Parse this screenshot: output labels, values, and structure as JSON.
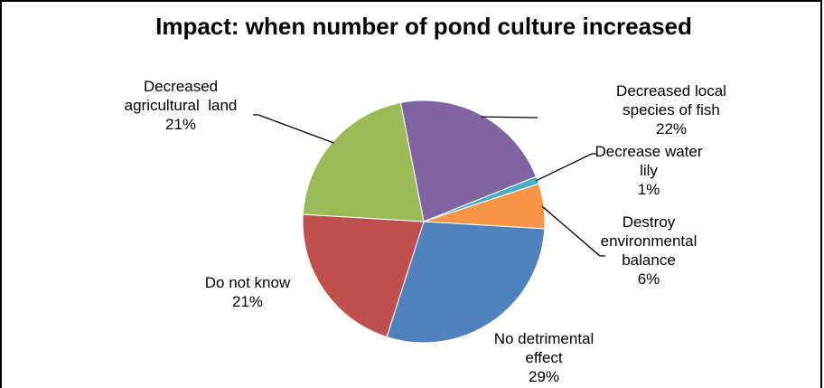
{
  "chart_data": {
    "type": "pie",
    "title": "Impact: when number of pond culture increased",
    "slices": [
      {
        "name": "Decreased local species of fish",
        "label_lines": [
          "Decreased local",
          "species of fish"
        ],
        "pct_label": "22%",
        "value": 22,
        "color": "#8064a2"
      },
      {
        "name": "Decrease water lily",
        "label_lines": [
          "Decrease water",
          "lily"
        ],
        "pct_label": "1%",
        "value": 1,
        "color": "#4bacc6"
      },
      {
        "name": "Destroy environmental balance",
        "label_lines": [
          "Destroy",
          "environmental",
          "balance"
        ],
        "pct_label": "6%",
        "value": 6,
        "color": "#f79646"
      },
      {
        "name": "No detrimental effect",
        "label_lines": [
          "No detrimental",
          "effect"
        ],
        "pct_label": "29%",
        "value": 29,
        "color": "#4f81bd"
      },
      {
        "name": "Do not know",
        "label_lines": [
          "Do not know"
        ],
        "pct_label": "21%",
        "value": 21,
        "color": "#c0504d"
      },
      {
        "name": "Decreased agricultural land",
        "label_lines": [
          "Decreased",
          "agricultural  land"
        ],
        "pct_label": "21%",
        "value": 21,
        "color": "#9bbb59"
      }
    ],
    "legend": "none"
  }
}
